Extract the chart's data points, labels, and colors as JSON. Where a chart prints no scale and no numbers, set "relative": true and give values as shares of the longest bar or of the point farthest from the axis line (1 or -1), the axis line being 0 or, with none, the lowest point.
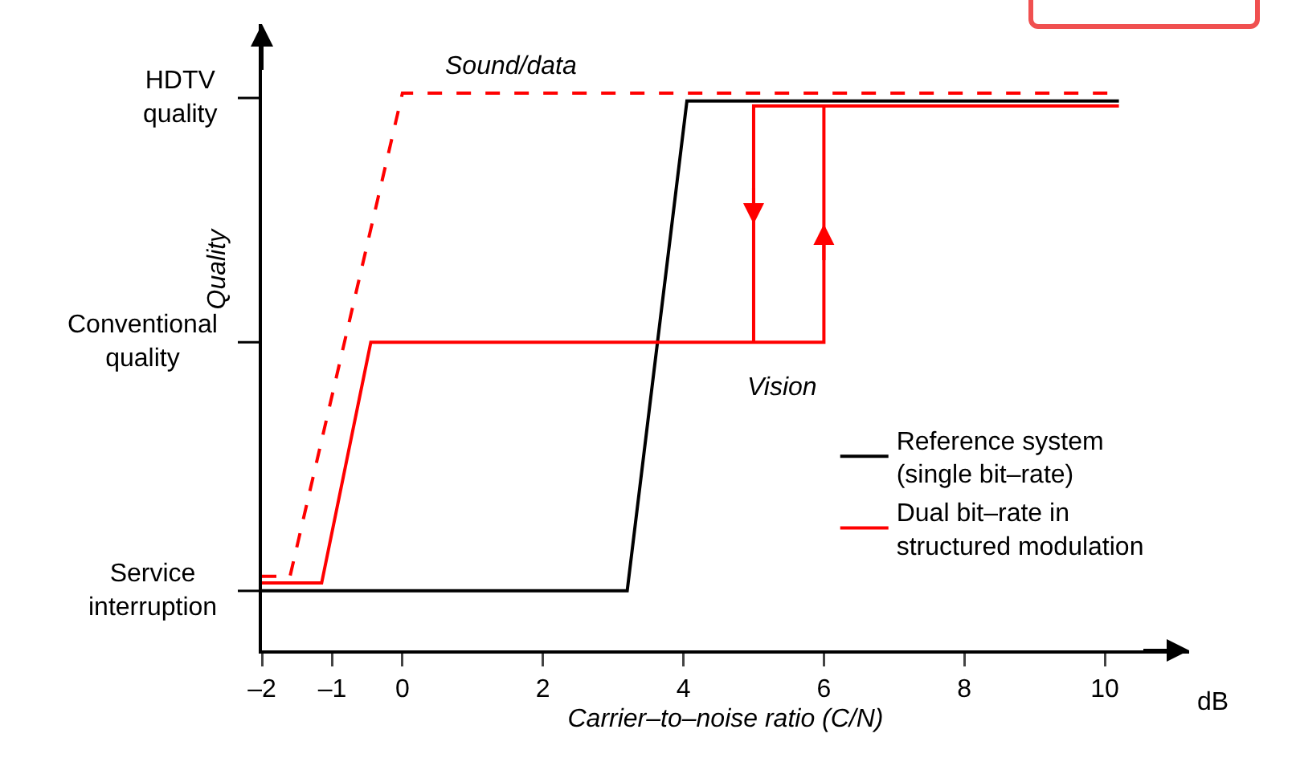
{
  "chart_data": {
    "type": "line",
    "xlabel": "Carrier–to–noise ratio (C/N)",
    "ylabel": "Quality",
    "relative": true,
    "xlim": [
      -2,
      11.2
    ],
    "xticks": [
      {
        "value": -2,
        "label": "–2"
      },
      {
        "value": -1,
        "label": "–1"
      },
      0,
      2,
      4,
      6,
      8,
      10
    ],
    "series": [
      {
        "name": "Reference system\n(single bit–rate)",
        "color": "#000000",
        "line_style": "solid",
        "x": [
          -2,
          3.2,
          4.05,
          10.2
        ],
        "values": [
          0.107,
          0.107,
          0.986,
          0.986
        ]
      },
      {
        "name": "Dual bit–rate in\nstructured modulation",
        "color": "#ff0000",
        "line_style": "solid",
        "x": [
          -2,
          -1.15,
          -0.45,
          6,
          6,
          10.2,
          5,
          5
        ],
        "values": [
          0.121,
          0.121,
          0.553,
          0.553,
          0.977,
          0.977,
          0.977,
          0.553
        ]
      },
      {
        "color": "#ff0000",
        "line_style": "dashed",
        "x": [
          -2,
          -1.6,
          0,
          10.2
        ],
        "values": [
          0.133,
          0.133,
          1,
          1
        ]
      }
    ],
    "annotations": [
      "Sound/data",
      "Vision",
      "dB",
      "Service\ninterruption",
      "Conventional\nquality",
      "HDTV\nquality"
    ],
    "legend": "bottom right",
    "grid": false
  }
}
